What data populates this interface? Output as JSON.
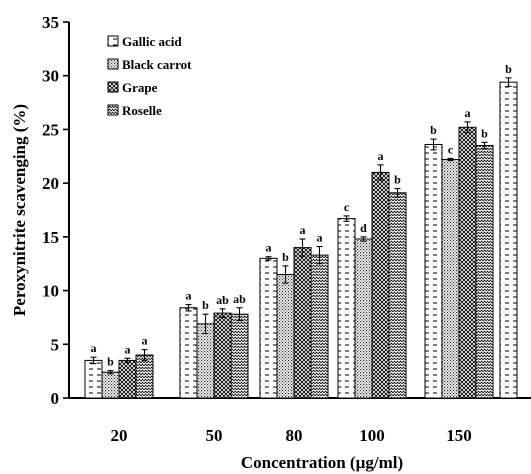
{
  "chart_data": {
    "type": "bar",
    "title": "",
    "xlabel": "Concentration (µg/ml)",
    "ylabel": "Peroxynitrite scavenging (%)",
    "ylim": [
      0,
      35
    ],
    "yticks": [
      0,
      5,
      10,
      15,
      20,
      25,
      30,
      35
    ],
    "grid": false,
    "legend_position": "top-left",
    "categories": [
      "20",
      "50",
      "80",
      "100",
      "150",
      ""
    ],
    "series": [
      {
        "name": "Gallic acid",
        "pattern": "dashes",
        "values": [
          3.5,
          8.4,
          13.0,
          16.7,
          23.6,
          29.4
        ],
        "errors": [
          0.3,
          0.3,
          0.15,
          0.25,
          0.5,
          0.4
        ],
        "labels": [
          "a",
          "a",
          "a",
          "c",
          "b",
          "b"
        ]
      },
      {
        "name": "Black carrot",
        "pattern": "dots",
        "values": [
          2.4,
          6.9,
          11.5,
          14.8,
          22.2,
          null
        ],
        "errors": [
          0.15,
          0.9,
          0.8,
          0.2,
          0.1,
          null
        ],
        "labels": [
          "b",
          "b",
          "b",
          "d",
          "c",
          ""
        ]
      },
      {
        "name": "Grape",
        "pattern": "crosshatch",
        "values": [
          3.5,
          7.9,
          14.0,
          21.0,
          25.2,
          null
        ],
        "errors": [
          0.2,
          0.4,
          0.8,
          0.7,
          0.5,
          null
        ],
        "labels": [
          "a",
          "ab",
          "a",
          "a",
          "a",
          ""
        ]
      },
      {
        "name": "Roselle",
        "pattern": "zigzag",
        "values": [
          4.0,
          7.8,
          13.3,
          19.1,
          23.5,
          null
        ],
        "errors": [
          0.5,
          0.6,
          0.8,
          0.4,
          0.3,
          null
        ],
        "labels": [
          "a",
          "ab",
          "a",
          "b",
          "b",
          ""
        ]
      }
    ]
  }
}
